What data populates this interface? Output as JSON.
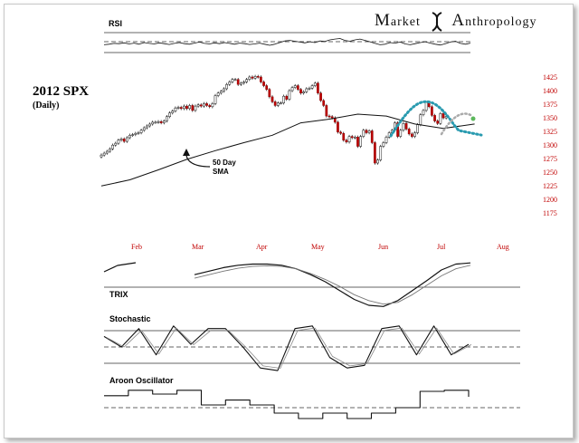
{
  "brand": {
    "word1_initial": "M",
    "word1_rest": "arket",
    "word2_initial": "A",
    "word2_rest": "nthropology"
  },
  "title": "2012  SPX",
  "subtitle": "(Daily)",
  "chart_data": {
    "type": "candlestick",
    "title": "2012  SPX",
    "subtitle": "(Daily)",
    "ylim": [
      1160,
      1435
    ],
    "yticks": [
      "1425",
      "1400",
      "1375",
      "1350",
      "1325",
      "1300",
      "1275",
      "1250",
      "1225",
      "1200",
      "1175"
    ],
    "months": [
      "Feb",
      "Mar",
      "Apr",
      "May",
      "Jun",
      "Jul",
      "Aug"
    ],
    "closes": [
      1290,
      1293,
      1296,
      1300,
      1306,
      1309,
      1314,
      1316,
      1312,
      1318,
      1322,
      1323,
      1325,
      1326,
      1330,
      1334,
      1337,
      1340,
      1343,
      1343,
      1344,
      1342,
      1345,
      1352,
      1358,
      1361,
      1366,
      1367,
      1365,
      1369,
      1365,
      1370,
      1362,
      1369,
      1371,
      1369,
      1373,
      1370,
      1368,
      1373,
      1386,
      1390,
      1393,
      1397,
      1404,
      1408,
      1412,
      1412,
      1404,
      1406,
      1408,
      1412,
      1416,
      1414,
      1417,
      1416,
      1408,
      1402,
      1396,
      1384,
      1376,
      1370,
      1374,
      1374,
      1385,
      1380,
      1394,
      1399,
      1402,
      1396,
      1390,
      1392,
      1397,
      1398,
      1402,
      1406,
      1390,
      1378,
      1370,
      1353,
      1352,
      1350,
      1343,
      1327,
      1325,
      1314,
      1311,
      1320,
      1318,
      1319,
      1304,
      1320,
      1330,
      1326,
      1329,
      1310,
      1277,
      1282,
      1304,
      1310,
      1319,
      1326,
      1330,
      1342,
      1320,
      1330,
      1341,
      1332,
      1324,
      1320,
      1326,
      1339,
      1355,
      1362,
      1375,
      1368,
      1354,
      1345,
      1341,
      1357,
      1350,
      1352
    ],
    "sma50_label": [
      "50 Day",
      "SMA"
    ],
    "sma50": [
      [
        0,
        1240
      ],
      [
        10,
        1250
      ],
      [
        20,
        1266
      ],
      [
        30,
        1283
      ],
      [
        40,
        1297
      ],
      [
        50,
        1310
      ],
      [
        60,
        1322
      ],
      [
        70,
        1342
      ],
      [
        80,
        1348
      ],
      [
        90,
        1356
      ],
      [
        100,
        1353
      ],
      [
        110,
        1340
      ],
      [
        120,
        1333
      ],
      [
        131,
        1340
      ]
    ],
    "rsi": [
      0.42,
      0.44,
      0.47,
      0.46,
      0.49,
      0.45,
      0.48,
      0.44,
      0.5,
      0.47,
      0.45,
      0.49,
      0.46,
      0.43,
      0.47,
      0.5,
      0.46,
      0.44,
      0.48,
      0.52,
      0.47,
      0.45,
      0.49,
      0.46,
      0.5,
      0.47,
      0.44,
      0.48,
      0.46,
      0.43,
      0.45,
      0.48,
      0.44,
      0.4,
      0.44,
      0.5,
      0.56,
      0.58,
      0.55,
      0.52,
      0.49,
      0.53,
      0.5,
      0.56,
      0.54,
      0.6,
      0.63,
      0.65,
      0.58,
      0.55,
      0.6,
      0.63,
      0.58,
      0.53,
      0.47,
      0.42,
      0.44,
      0.5,
      0.48,
      0.52,
      0.45,
      0.42,
      0.46,
      0.5,
      0.53,
      0.48,
      0.44,
      0.41,
      0.46,
      0.52,
      0.55,
      0.47,
      0.44,
      0.48
    ],
    "trix": [
      0.72,
      0.78,
      0.84,
      0.88,
      0.9,
      0.9,
      0.88,
      0.82,
      0.72,
      0.6,
      0.45,
      0.3,
      0.2,
      0.18,
      0.28,
      0.45,
      0.62,
      0.8,
      0.9,
      0.92
    ],
    "trix_signal": [
      0.66,
      0.72,
      0.78,
      0.83,
      0.86,
      0.87,
      0.86,
      0.82,
      0.74,
      0.64,
      0.52,
      0.38,
      0.28,
      0.22,
      0.25,
      0.38,
      0.54,
      0.7,
      0.82,
      0.88
    ],
    "stochastic": [
      0.7,
      0.5,
      0.85,
      0.35,
      0.9,
      0.55,
      0.85,
      0.85,
      0.5,
      0.1,
      0.05,
      0.85,
      0.9,
      0.3,
      0.1,
      0.15,
      0.85,
      0.9,
      0.35,
      0.9,
      0.35,
      0.55
    ],
    "aroon": [
      0.72,
      0.82,
      0.75,
      0.82,
      0.55,
      0.64,
      0.55,
      0.4,
      0.3,
      0.4,
      0.3,
      0.4,
      0.5,
      0.8,
      0.82,
      0.7
    ],
    "panels": {
      "rsi": "RSI",
      "trix": "TRIX",
      "stochastic": "Stochastic",
      "aroon": "Aroon Oscillator"
    }
  }
}
